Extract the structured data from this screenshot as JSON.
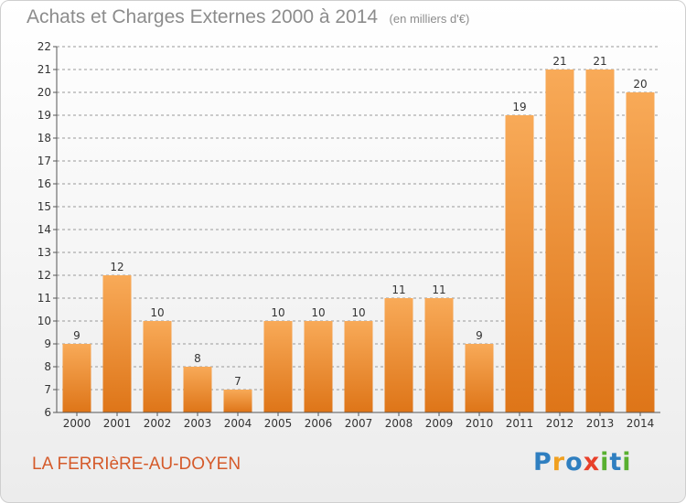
{
  "title": "Achats et Charges Externes 2000 à 2014",
  "unit": "(en milliers d'€)",
  "commune": "LA FERRIèRE-AU-DOYEN",
  "logo": {
    "letters": [
      "P",
      "r",
      "o",
      "x",
      "i",
      "t",
      "i"
    ],
    "colors": [
      "#2f7fc0",
      "#f0a020",
      "#2f7fc0",
      "#e8402a",
      "#58b030",
      "#2f7fc0",
      "#58b030"
    ]
  },
  "colors": {
    "bar_light": "#f8aa58",
    "bar_dark": "#de7518",
    "axis": "#555555",
    "grid": "#999999"
  },
  "chart_data": {
    "type": "bar",
    "title": "Achats et Charges Externes 2000 à 2014",
    "subtitle": "(en milliers d'€)",
    "categories": [
      "2000",
      "2001",
      "2002",
      "2003",
      "2004",
      "2005",
      "2006",
      "2007",
      "2008",
      "2009",
      "2010",
      "2011",
      "2012",
      "2013",
      "2014"
    ],
    "values": [
      9,
      12,
      10,
      8,
      7,
      10,
      10,
      10,
      11,
      11,
      9,
      19,
      21,
      21,
      20
    ],
    "ylim": [
      6,
      22
    ],
    "yticks": [
      6,
      7,
      8,
      9,
      10,
      11,
      12,
      13,
      14,
      15,
      16,
      17,
      18,
      19,
      20,
      21,
      22
    ],
    "grid": "dashed-horizontal",
    "xlabel": "",
    "ylabel": ""
  }
}
